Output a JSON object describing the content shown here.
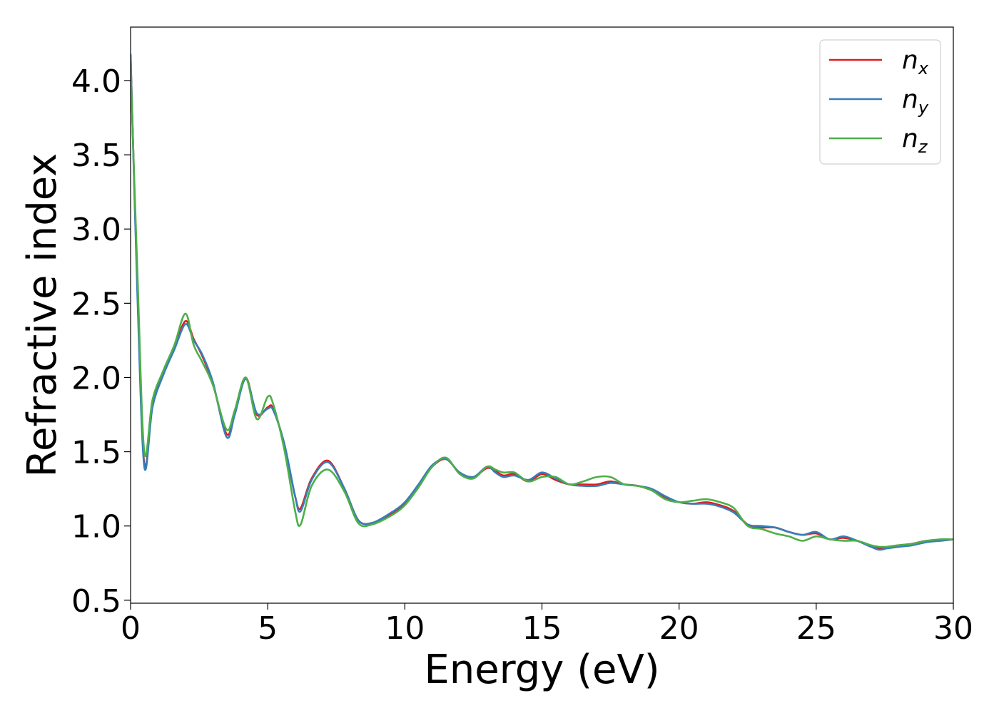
{
  "chart_data": {
    "type": "line",
    "title": "",
    "xlabel": "Energy (eV)",
    "ylabel": "Refractive index",
    "xlim": [
      0,
      30
    ],
    "ylim": [
      0.48,
      4.36
    ],
    "xticks": [
      0,
      5,
      10,
      15,
      20,
      25,
      30
    ],
    "xtick_labels": [
      "0",
      "5",
      "10",
      "15",
      "20",
      "25",
      "30"
    ],
    "yticks": [
      0.5,
      1.0,
      1.5,
      2.0,
      2.5,
      3.0,
      3.5,
      4.0
    ],
    "ytick_labels": [
      "0.5",
      "1.0",
      "1.5",
      "2.0",
      "2.5",
      "3.0",
      "3.5",
      "4.0"
    ],
    "grid": false,
    "legend_position": "top-right",
    "series": [
      {
        "name": "n_x",
        "label_main": "n",
        "label_sub": "x",
        "color": "#e41a1c",
        "x": [
          0,
          0.25,
          0.5,
          0.8,
          1.2,
          1.6,
          2.0,
          2.3,
          2.6,
          3.0,
          3.5,
          3.8,
          4.2,
          4.6,
          5.0,
          5.2,
          5.6,
          6.0,
          6.2,
          6.6,
          7.2,
          7.8,
          8.3,
          8.8,
          9.5,
          10.0,
          10.5,
          11.0,
          11.5,
          12.0,
          12.5,
          13.0,
          13.3,
          13.6,
          14.0,
          14.5,
          15.0,
          15.5,
          16.0,
          16.5,
          17.0,
          17.5,
          18.0,
          18.5,
          19.0,
          19.5,
          20.0,
          20.5,
          21.0,
          21.5,
          22.0,
          22.5,
          23.0,
          23.5,
          24.0,
          24.5,
          25.0,
          25.5,
          26.0,
          26.5,
          27.0,
          27.3,
          27.6,
          28.0,
          28.5,
          29.0,
          29.5,
          30.0
        ],
        "values": [
          4.17,
          2.6,
          1.42,
          1.82,
          2.03,
          2.2,
          2.38,
          2.26,
          2.15,
          1.96,
          1.62,
          1.76,
          2.0,
          1.75,
          1.8,
          1.79,
          1.55,
          1.2,
          1.12,
          1.32,
          1.44,
          1.25,
          1.04,
          1.02,
          1.08,
          1.15,
          1.27,
          1.4,
          1.45,
          1.36,
          1.33,
          1.39,
          1.37,
          1.34,
          1.35,
          1.3,
          1.35,
          1.31,
          1.28,
          1.28,
          1.28,
          1.3,
          1.28,
          1.27,
          1.24,
          1.19,
          1.16,
          1.15,
          1.16,
          1.14,
          1.1,
          1.01,
          0.99,
          0.99,
          0.96,
          0.94,
          0.95,
          0.91,
          0.92,
          0.9,
          0.86,
          0.85,
          0.86,
          0.87,
          0.88,
          0.9,
          0.9,
          0.91
        ]
      },
      {
        "name": "n_y",
        "label_main": "n",
        "label_sub": "y",
        "color": "#377eb8",
        "x": [
          0,
          0.25,
          0.5,
          0.8,
          1.2,
          1.6,
          2.0,
          2.3,
          2.6,
          3.0,
          3.5,
          3.8,
          4.2,
          4.6,
          5.0,
          5.2,
          5.6,
          6.0,
          6.2,
          6.6,
          7.2,
          7.8,
          8.3,
          8.8,
          9.5,
          10.0,
          10.5,
          11.0,
          11.5,
          12.0,
          12.5,
          13.0,
          13.3,
          13.6,
          14.0,
          14.5,
          15.0,
          15.5,
          16.0,
          16.5,
          17.0,
          17.5,
          18.0,
          18.5,
          19.0,
          19.5,
          20.0,
          20.5,
          21.0,
          21.5,
          22.0,
          22.5,
          23.0,
          23.5,
          24.0,
          24.5,
          25.0,
          25.5,
          26.0,
          26.5,
          27.0,
          27.3,
          27.6,
          28.0,
          28.5,
          29.0,
          29.5,
          30.0
        ],
        "values": [
          4.18,
          2.55,
          1.4,
          1.8,
          2.02,
          2.19,
          2.36,
          2.25,
          2.16,
          1.97,
          1.6,
          1.75,
          1.99,
          1.76,
          1.79,
          1.78,
          1.56,
          1.2,
          1.1,
          1.31,
          1.43,
          1.25,
          1.04,
          1.02,
          1.09,
          1.16,
          1.28,
          1.41,
          1.45,
          1.36,
          1.33,
          1.4,
          1.36,
          1.33,
          1.34,
          1.31,
          1.36,
          1.32,
          1.28,
          1.27,
          1.27,
          1.29,
          1.28,
          1.27,
          1.25,
          1.2,
          1.16,
          1.15,
          1.15,
          1.13,
          1.09,
          1.01,
          1.0,
          0.99,
          0.96,
          0.94,
          0.96,
          0.91,
          0.93,
          0.9,
          0.86,
          0.84,
          0.85,
          0.86,
          0.87,
          0.89,
          0.9,
          0.91
        ]
      },
      {
        "name": "n_z",
        "label_main": "n",
        "label_sub": "z",
        "color": "#4daf4a",
        "x": [
          0,
          0.25,
          0.5,
          0.8,
          1.2,
          1.6,
          2.0,
          2.3,
          2.6,
          3.0,
          3.5,
          3.8,
          4.2,
          4.6,
          5.0,
          5.2,
          5.6,
          6.0,
          6.2,
          6.6,
          7.2,
          7.8,
          8.3,
          8.8,
          9.5,
          10.0,
          10.5,
          11.0,
          11.5,
          12.0,
          12.5,
          13.0,
          13.3,
          13.6,
          14.0,
          14.5,
          15.0,
          15.5,
          16.0,
          16.5,
          17.0,
          17.5,
          18.0,
          18.5,
          19.0,
          19.5,
          20.0,
          20.5,
          21.0,
          21.5,
          22.0,
          22.5,
          23.0,
          23.5,
          24.0,
          24.5,
          25.0,
          25.5,
          26.0,
          26.5,
          27.0,
          27.3,
          27.6,
          28.0,
          28.5,
          29.0,
          29.5,
          30.0
        ],
        "values": [
          4.1,
          2.7,
          1.5,
          1.85,
          2.05,
          2.22,
          2.43,
          2.22,
          2.11,
          1.95,
          1.65,
          1.78,
          2.0,
          1.72,
          1.87,
          1.82,
          1.52,
          1.1,
          1.01,
          1.27,
          1.38,
          1.23,
          1.02,
          1.01,
          1.07,
          1.14,
          1.26,
          1.4,
          1.46,
          1.35,
          1.32,
          1.4,
          1.38,
          1.36,
          1.36,
          1.3,
          1.33,
          1.33,
          1.28,
          1.3,
          1.33,
          1.33,
          1.28,
          1.27,
          1.24,
          1.18,
          1.16,
          1.17,
          1.18,
          1.16,
          1.12,
          1.0,
          0.98,
          0.95,
          0.93,
          0.9,
          0.93,
          0.91,
          0.9,
          0.9,
          0.87,
          0.86,
          0.86,
          0.87,
          0.88,
          0.9,
          0.91,
          0.91
        ]
      }
    ]
  }
}
